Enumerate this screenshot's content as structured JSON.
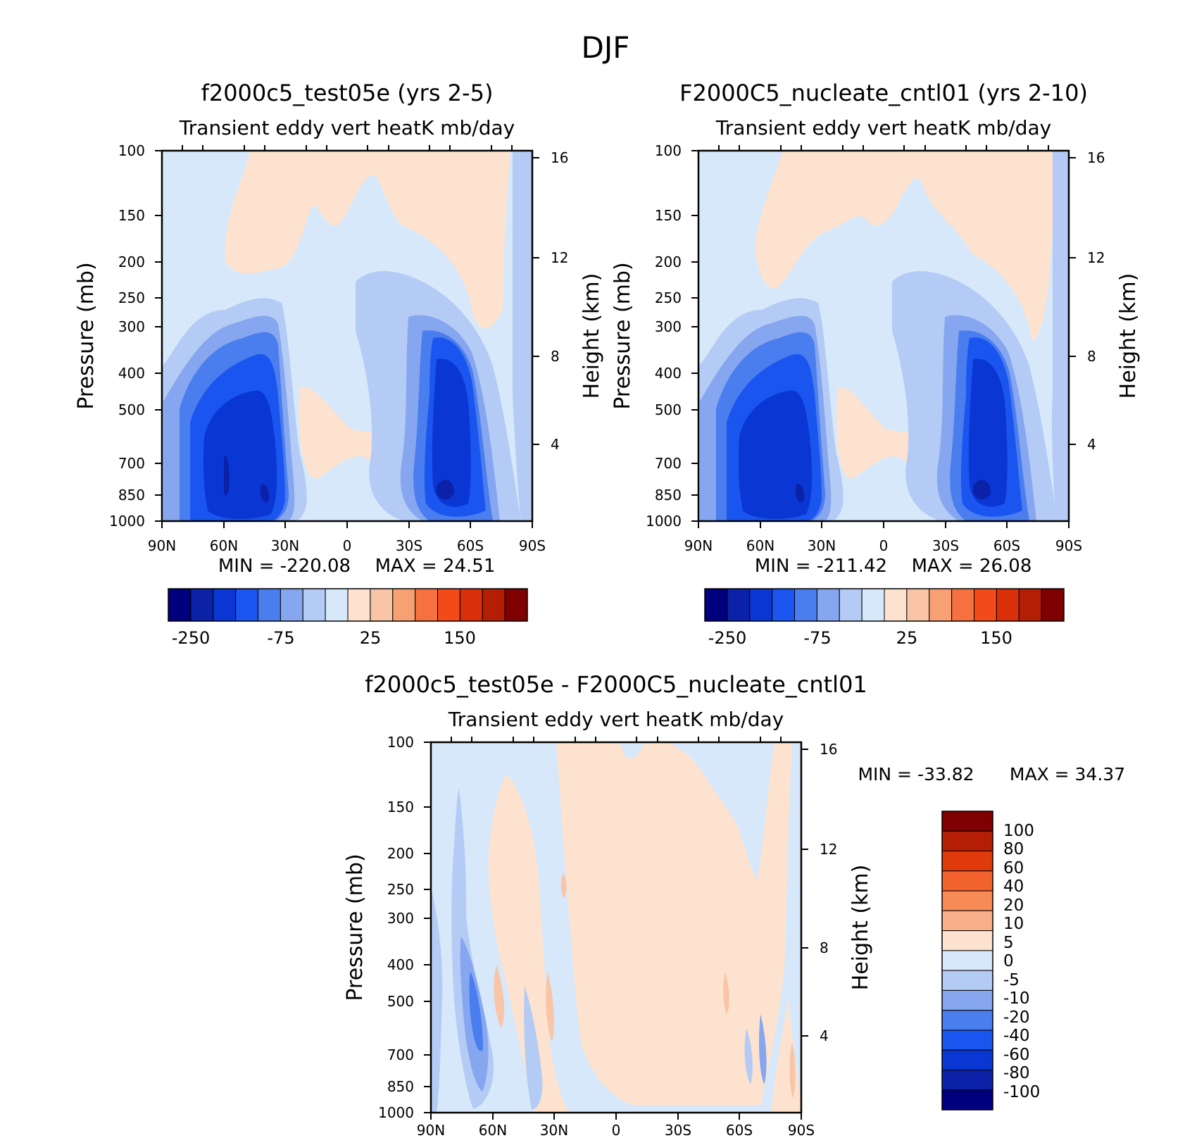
{
  "page_title": "DJF",
  "chart_data": [
    {
      "type": "heatmap",
      "title": "f2000c5_test05e (yrs 2-5)",
      "subtitle": "Transient eddy vert heatK mb/day",
      "ylabel": "Pressure (mb)",
      "ylabel_right": "Height (km)",
      "x_ticks": [
        "90N",
        "60N",
        "30N",
        "0",
        "30S",
        "60S",
        "90S"
      ],
      "y_ticks": [
        "100",
        "150",
        "200",
        "250",
        "300",
        "400",
        "500",
        "700",
        "850",
        "1000"
      ],
      "y_ticks_right": [
        "16",
        "12",
        "8",
        "4"
      ],
      "ylim": [
        1000,
        100
      ],
      "y_scale": "log",
      "min_text": "MIN = -220.08",
      "max_text": "MAX = 24.51",
      "min": -220.08,
      "max": 24.51,
      "colorbar_labels": [
        "-250",
        "-75",
        "25",
        "150"
      ]
    },
    {
      "type": "heatmap",
      "title": "F2000C5_nucleate_cntl01 (yrs 2-10)",
      "subtitle": "Transient eddy vert heatK mb/day",
      "ylabel": "Pressure (mb)",
      "ylabel_right": "Height (km)",
      "x_ticks": [
        "90N",
        "60N",
        "30N",
        "0",
        "30S",
        "60S",
        "90S"
      ],
      "y_ticks": [
        "100",
        "150",
        "200",
        "250",
        "300",
        "400",
        "500",
        "700",
        "850",
        "1000"
      ],
      "y_ticks_right": [
        "16",
        "12",
        "8",
        "4"
      ],
      "ylim": [
        1000,
        100
      ],
      "y_scale": "log",
      "min_text": "MIN = -211.42",
      "max_text": "MAX = 26.08",
      "min": -211.42,
      "max": 26.08,
      "colorbar_labels": [
        "-250",
        "-75",
        "25",
        "150"
      ]
    },
    {
      "type": "heatmap",
      "title": "f2000c5_test05e - F2000C5_nucleate_cntl01",
      "subtitle": "Transient eddy vert heatK mb/day",
      "ylabel": "Pressure (mb)",
      "ylabel_right": "Height (km)",
      "x_ticks": [
        "90N",
        "60N",
        "30N",
        "0",
        "30S",
        "60S",
        "90S"
      ],
      "y_ticks": [
        "100",
        "150",
        "200",
        "250",
        "300",
        "400",
        "500",
        "700",
        "850",
        "1000"
      ],
      "y_ticks_right": [
        "16",
        "12",
        "8",
        "4"
      ],
      "ylim": [
        1000,
        100
      ],
      "y_scale": "log",
      "min_text": "MIN = -33.82",
      "max_text": "MAX = 34.37",
      "min": -33.82,
      "max": 34.37,
      "colorbar_labels": [
        "100",
        "80",
        "60",
        "40",
        "20",
        "10",
        "5",
        "0",
        "-5",
        "-10",
        "-20",
        "-40",
        "-60",
        "-80",
        "-100"
      ]
    }
  ],
  "colors": {
    "absolute_scale": [
      "#00007f",
      "#0a21a8",
      "#0a37d4",
      "#1b55f0",
      "#4a7ded",
      "#86a6f0",
      "#b4cbf5",
      "#d6e8fa",
      "#fde3cf",
      "#f9c5a6",
      "#f7a073",
      "#f57140",
      "#f24a19",
      "#d9300a",
      "#b31e05",
      "#7f0000"
    ],
    "diff_scale_top_down": [
      "#7f0000",
      "#b31e05",
      "#e03a0c",
      "#f2622d",
      "#f88a56",
      "#f9b08a",
      "#fde3cf",
      "#d6e8fa",
      "#b4cbf5",
      "#86a6f0",
      "#4a7ded",
      "#1b55f0",
      "#0a37d4",
      "#0a21a8",
      "#00007f"
    ]
  }
}
